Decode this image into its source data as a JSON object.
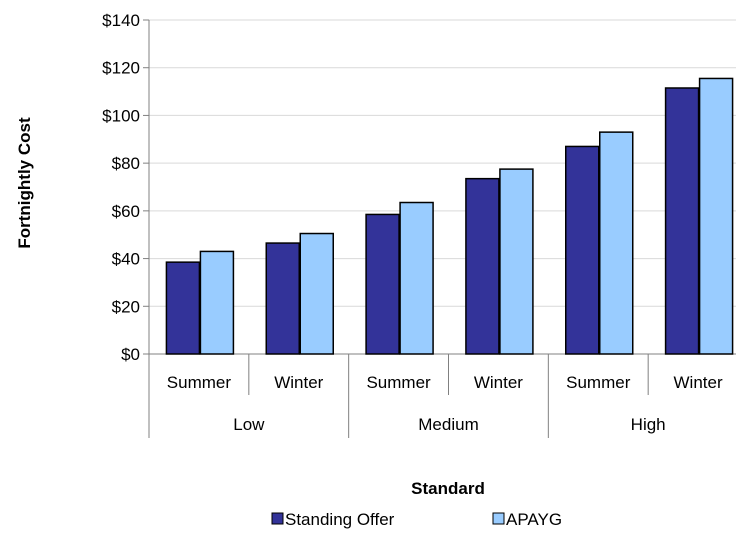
{
  "chart_data": {
    "type": "bar",
    "xlabel": "Standard",
    "ylabel": "Fortnightly Cost",
    "ylim": [
      0,
      140
    ],
    "yticks": [
      0,
      20,
      40,
      60,
      80,
      100,
      120,
      140
    ],
    "ytick_labels": [
      "$0",
      "$20",
      "$40",
      "$60",
      "$80",
      "$100",
      "$120",
      "$140"
    ],
    "grid": true,
    "legend_position": "bottom",
    "groups": [
      {
        "label": "Low",
        "categories": [
          "Summer",
          "Winter"
        ]
      },
      {
        "label": "Medium",
        "categories": [
          "Summer",
          "Winter"
        ]
      },
      {
        "label": "High",
        "categories": [
          "Summer",
          "Winter"
        ]
      }
    ],
    "series": [
      {
        "name": "Standing Offer",
        "color": "#333399",
        "values": [
          38.5,
          46.5,
          58.5,
          73.5,
          87,
          111.5
        ]
      },
      {
        "name": "APAYG",
        "color": "#99ccff",
        "values": [
          43,
          50.5,
          63.5,
          77.5,
          93,
          115.5
        ]
      }
    ]
  }
}
